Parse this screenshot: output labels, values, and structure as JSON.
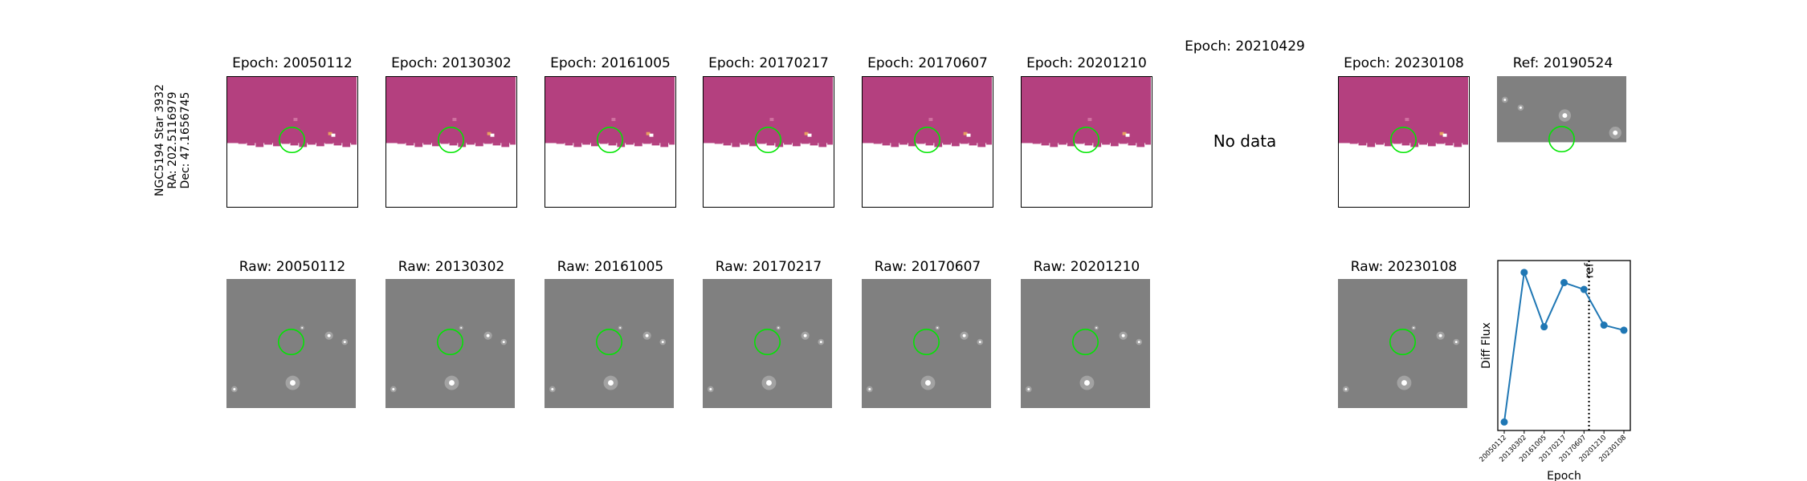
{
  "side_label": {
    "line1": "NGC5194 Star 3932",
    "line2": "RA: 202.5116979",
    "line3": "Dec: 47.1656745"
  },
  "diff_row": [
    {
      "title": "Epoch: 20050112",
      "has_data": true
    },
    {
      "title": "Epoch: 20130302",
      "has_data": true
    },
    {
      "title": "Epoch: 20161005",
      "has_data": true
    },
    {
      "title": "Epoch: 20170217",
      "has_data": true
    },
    {
      "title": "Epoch: 20170607",
      "has_data": true
    },
    {
      "title": "Epoch: 20201210",
      "has_data": true
    },
    {
      "title": "Epoch: 20210429",
      "has_data": false,
      "message": "No data"
    },
    {
      "title": "Epoch: 20230108",
      "has_data": true
    }
  ],
  "reference": {
    "title": "Ref: 20190524"
  },
  "raw_row": [
    {
      "title": "Raw: 20050112"
    },
    {
      "title": "Raw: 20130302"
    },
    {
      "title": "Raw: 20161005"
    },
    {
      "title": "Raw: 20170217"
    },
    {
      "title": "Raw: 20170607"
    },
    {
      "title": "Raw: 20201210"
    },
    {
      "title": "Raw: 20230108"
    }
  ],
  "colors": {
    "diff_background": "#b4407f",
    "raw_background": "#808080",
    "aperture": "#00e600",
    "series": "#1f77b4"
  },
  "chart_data": {
    "type": "line",
    "x": [
      "20050112",
      "20130302",
      "20161005",
      "20170217",
      "20170607",
      "20201210",
      "20230108"
    ],
    "series": [
      {
        "values": [
          0.05,
          0.93,
          0.61,
          0.87,
          0.83,
          0.62,
          0.59
        ]
      }
    ],
    "ylabel": "Diff Flux",
    "xlabel": "Epoch",
    "yticks": "hidden",
    "ylim": [
      0,
      1
    ],
    "reference_line": {
      "label": "ref",
      "date": "20190524",
      "style": "dotted"
    },
    "grid": false,
    "legend": "none"
  }
}
